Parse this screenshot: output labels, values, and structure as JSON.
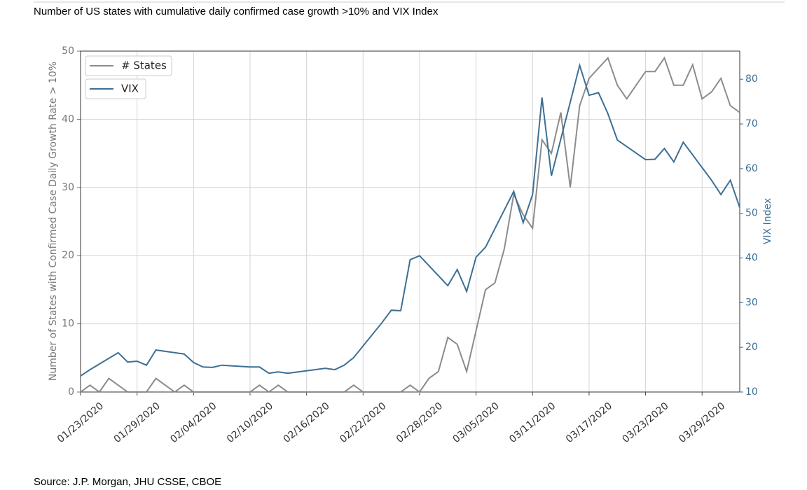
{
  "chart_data": {
    "type": "line",
    "title": "Number of US states with cumulative daily confirmed case growth >10% and VIX Index",
    "source": "Source: J.P. Morgan, JHU CSSE, CBOE",
    "ylabel": "Number of States with Confirmed Case Daily Growth Rate > 10%",
    "y2label": "VIX Index",
    "xlim": [
      "01/23/2020",
      "04/02/2020"
    ],
    "xticks": [
      "01/23/2020",
      "01/29/2020",
      "02/04/2020",
      "02/10/2020",
      "02/16/2020",
      "02/22/2020",
      "02/28/2020",
      "03/05/2020",
      "03/11/2020",
      "03/17/2020",
      "03/23/2020",
      "03/29/2020"
    ],
    "ylim": [
      0,
      50
    ],
    "yticks": [
      0,
      10,
      20,
      30,
      40,
      50
    ],
    "y2lim": [
      10,
      86.3
    ],
    "y2ticks": [
      10,
      20,
      30,
      40,
      50,
      60,
      70,
      80
    ],
    "grid": true,
    "legend": "upper left",
    "series": [
      {
        "name": "# States",
        "color": "#8c8c8c",
        "x": [
          "01/23/2020",
          "01/24/2020",
          "01/25/2020",
          "01/26/2020",
          "01/27/2020",
          "01/28/2020",
          "01/29/2020",
          "01/30/2020",
          "01/31/2020",
          "02/01/2020",
          "02/02/2020",
          "02/03/2020",
          "02/04/2020",
          "02/05/2020",
          "02/06/2020",
          "02/07/2020",
          "02/08/2020",
          "02/09/2020",
          "02/10/2020",
          "02/11/2020",
          "02/12/2020",
          "02/13/2020",
          "02/14/2020",
          "02/15/2020",
          "02/16/2020",
          "02/17/2020",
          "02/18/2020",
          "02/19/2020",
          "02/20/2020",
          "02/21/2020",
          "02/22/2020",
          "02/23/2020",
          "02/24/2020",
          "02/25/2020",
          "02/26/2020",
          "02/27/2020",
          "02/28/2020",
          "02/29/2020",
          "03/01/2020",
          "03/02/2020",
          "03/03/2020",
          "03/04/2020",
          "03/05/2020",
          "03/06/2020",
          "03/07/2020",
          "03/08/2020",
          "03/09/2020",
          "03/10/2020",
          "03/11/2020",
          "03/12/2020",
          "03/13/2020",
          "03/14/2020",
          "03/15/2020",
          "03/16/2020",
          "03/17/2020",
          "03/18/2020",
          "03/19/2020",
          "03/20/2020",
          "03/21/2020",
          "03/22/2020",
          "03/23/2020",
          "03/24/2020",
          "03/25/2020",
          "03/26/2020",
          "03/27/2020",
          "03/28/2020",
          "03/29/2020",
          "03/30/2020",
          "03/31/2020",
          "04/01/2020",
          "04/02/2020"
        ],
        "values": [
          0,
          1,
          0,
          2,
          1,
          0,
          0,
          0,
          2,
          1,
          0,
          1,
          0,
          0,
          0,
          0,
          0,
          0,
          0,
          1,
          0,
          1,
          0,
          0,
          0,
          0,
          0,
          0,
          0,
          1,
          0,
          0,
          0,
          0,
          0,
          1,
          0,
          2,
          3,
          8,
          7,
          3,
          9,
          15,
          16,
          21,
          29,
          26,
          24,
          37,
          35,
          41,
          30,
          42,
          46,
          47.5,
          49,
          45,
          43,
          45,
          47,
          47,
          49,
          45,
          45,
          48,
          43,
          44,
          46,
          42,
          41
        ]
      },
      {
        "name": "VIX",
        "color": "#3d6f94",
        "axis": "y2",
        "x": [
          "01/23/2020",
          "01/24/2020",
          "01/27/2020",
          "01/28/2020",
          "01/29/2020",
          "01/30/2020",
          "01/31/2020",
          "02/03/2020",
          "02/04/2020",
          "02/05/2020",
          "02/06/2020",
          "02/07/2020",
          "02/10/2020",
          "02/11/2020",
          "02/12/2020",
          "02/13/2020",
          "02/14/2020",
          "02/18/2020",
          "02/19/2020",
          "02/20/2020",
          "02/21/2020",
          "02/24/2020",
          "02/25/2020",
          "02/26/2020",
          "02/27/2020",
          "02/28/2020",
          "03/02/2020",
          "03/03/2020",
          "03/04/2020",
          "03/05/2020",
          "03/06/2020",
          "03/09/2020",
          "03/10/2020",
          "03/11/2020",
          "03/12/2020",
          "03/13/2020",
          "03/16/2020",
          "03/17/2020",
          "03/18/2020",
          "03/19/2020",
          "03/20/2020",
          "03/23/2020",
          "03/24/2020",
          "03/25/2020",
          "03/26/2020",
          "03/27/2020",
          "03/30/2020",
          "03/31/2020",
          "04/01/2020",
          "04/02/2020"
        ],
        "values": [
          13.6,
          15.0,
          18.8,
          16.7,
          16.9,
          16.0,
          19.4,
          18.5,
          16.6,
          15.6,
          15.5,
          16.0,
          15.6,
          15.6,
          14.2,
          14.5,
          14.2,
          15.3,
          15.0,
          16.0,
          17.7,
          25.5,
          28.3,
          28.2,
          39.6,
          40.5,
          33.8,
          37.4,
          32.5,
          40.2,
          42.4,
          54.9,
          47.9,
          54.2,
          75.9,
          58.4,
          83.1,
          76.4,
          77.0,
          72.3,
          66.4,
          62.0,
          62.1,
          64.5,
          61.5,
          65.9,
          57.4,
          54.2,
          57.4,
          51.3
        ]
      }
    ]
  }
}
